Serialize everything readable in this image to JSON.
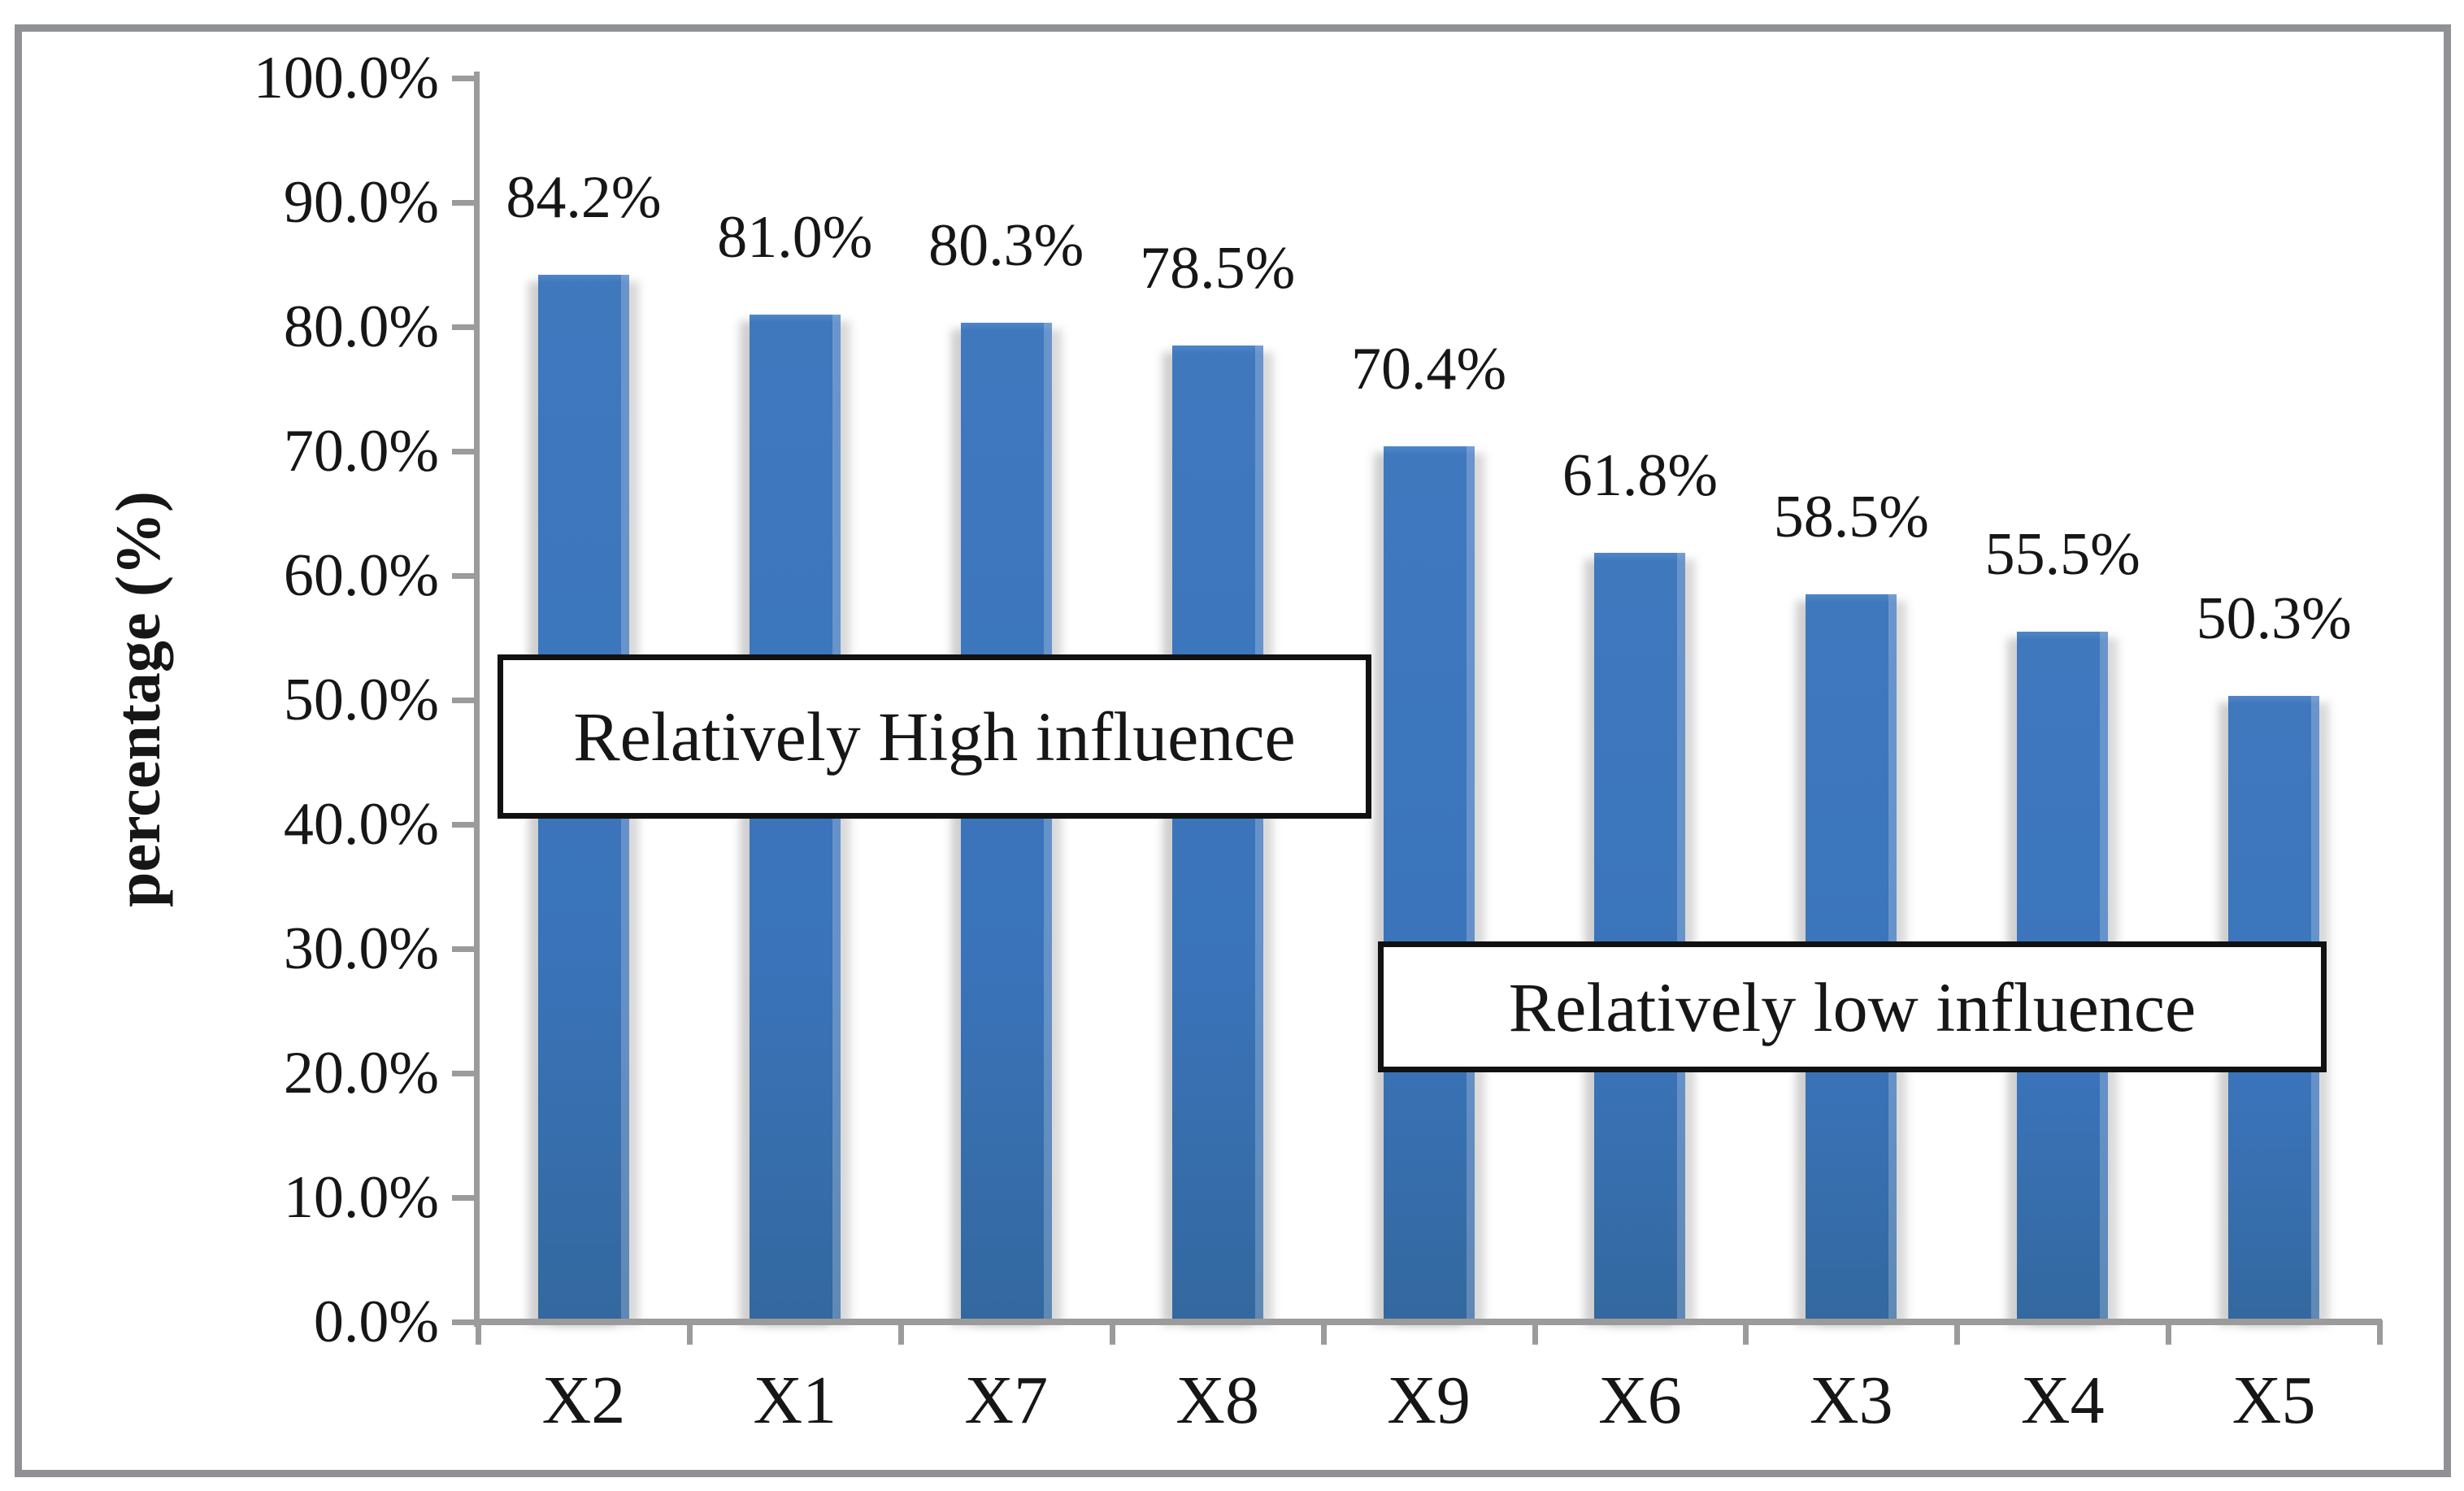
{
  "chart_data": {
    "type": "bar",
    "title": "",
    "categories": [
      "X2",
      "X1",
      "X7",
      "X8",
      "X9",
      "X6",
      "X3",
      "X4",
      "X5"
    ],
    "values": [
      84.2,
      81.0,
      80.3,
      78.5,
      70.4,
      61.8,
      58.5,
      55.5,
      50.3
    ],
    "value_labels": [
      "84.2%",
      "81.0%",
      "80.3%",
      "78.5%",
      "70.4%",
      "61.8%",
      "58.5%",
      "55.5%",
      "50.3%"
    ],
    "xlabel": "",
    "ylabel": "percentage (%)",
    "ylim": [
      0,
      100
    ],
    "y_tick_labels": [
      "100.0%",
      "90.0%",
      "80.0%",
      "70.0%",
      "60.0%",
      "50.0%",
      "40.0%",
      "30.0%",
      "20.0%",
      "10.0%",
      "0.0%"
    ],
    "y_tick_values": [
      100,
      90,
      80,
      70,
      60,
      50,
      40,
      30,
      20,
      10,
      0
    ],
    "grid": "off",
    "legend": "none",
    "annotations": [
      {
        "text": "Relatively High influence",
        "zone": "high"
      },
      {
        "text": "Relatively low influence",
        "zone": "low"
      }
    ],
    "colors": {
      "bar": "#3b75bc",
      "bar_top": "#4c84c6",
      "bar_bottom": "#33689f",
      "axis": "#9b9b9b",
      "frame": "#8f9194",
      "text": "#161616",
      "annotation_border": "#111111",
      "annotation_bg": "#ffffff"
    }
  }
}
